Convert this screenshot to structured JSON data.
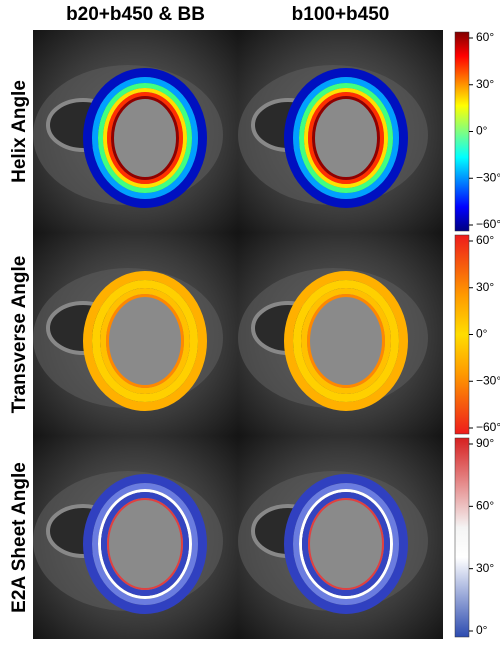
{
  "columns": [
    "b20+b450 & BB",
    "b100+b450"
  ],
  "rows": [
    {
      "label": "Helix Angle",
      "colorbar_ticks": [
        "60°",
        "30°",
        "0°",
        "−30°",
        "−60°"
      ]
    },
    {
      "label": "Transverse Angle",
      "colorbar_ticks": [
        "60°",
        "30°",
        "0°",
        "−30°",
        "−60°"
      ]
    },
    {
      "label": "E2A Sheet Angle",
      "colorbar_ticks": [
        "90°",
        "60°",
        "30°",
        "0°"
      ]
    }
  ]
}
